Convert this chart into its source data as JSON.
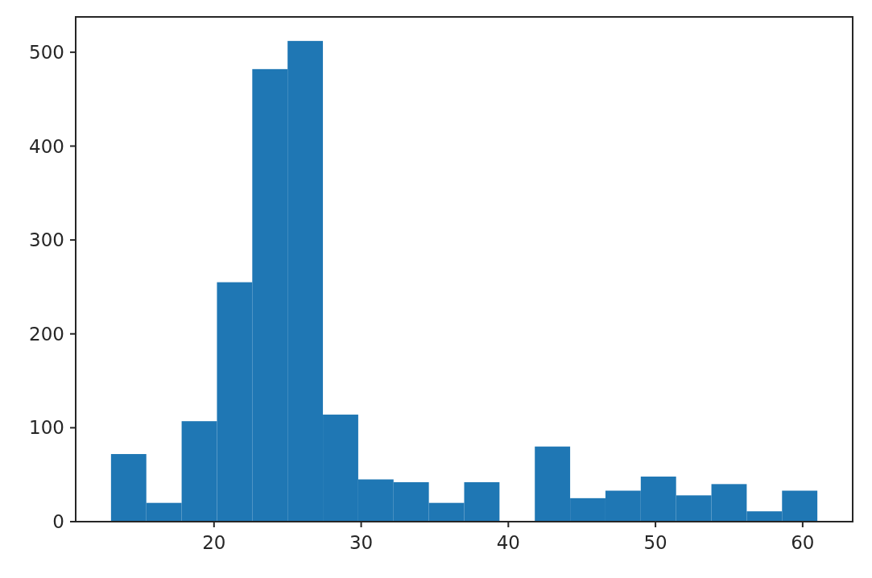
{
  "chart_data": {
    "type": "histogram",
    "bins": [
      13,
      15.4,
      17.8,
      20.2,
      22.6,
      25,
      27.4,
      29.8,
      32.2,
      34.6,
      37,
      39.4,
      41.8,
      44.2,
      46.6,
      49,
      51.4,
      53.8,
      56.2,
      58.6,
      61
    ],
    "values": [
      72,
      20,
      107,
      255,
      482,
      512,
      114,
      45,
      42,
      20,
      42,
      0,
      80,
      25,
      33,
      48,
      28,
      40,
      11,
      33
    ],
    "color": "#1f77b4",
    "xlim": [
      10.6,
      63.4
    ],
    "xticks": [
      20,
      30,
      40,
      50,
      60
    ],
    "ylim": [
      0,
      537.6
    ],
    "yticks": [
      0,
      100,
      200,
      300,
      400,
      500
    ],
    "grid": false
  }
}
